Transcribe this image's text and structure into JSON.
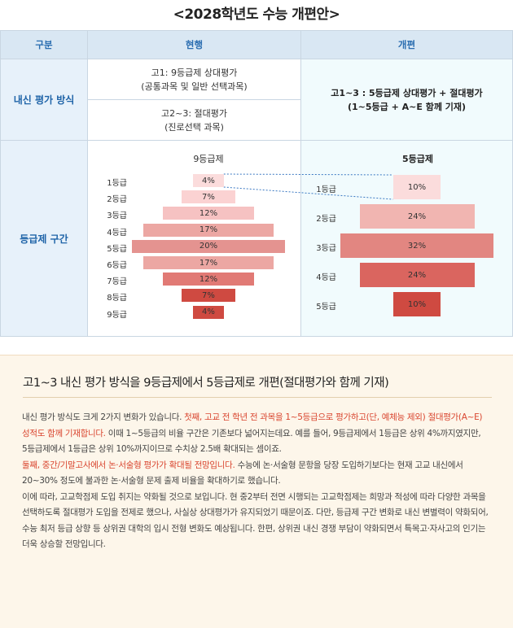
{
  "title": "<2028학년도 수능 개편안>",
  "table": {
    "header": {
      "category": "구분",
      "current": "현행",
      "reform": "개편"
    },
    "row1": {
      "label": "내신 평가 방식",
      "current_a_line1": "고1: 9등급제 상대평가",
      "current_a_line2": "(공통과목 및 일반 선택과목)",
      "current_b_line1": "고2~3: 절대평가",
      "current_b_line2": "(진로선택 과목)",
      "reform_line1": "고1~3 : 5등급제 상대평가 + 절대평가",
      "reform_line2": "(1~5등급 + A~E 함께 기재)"
    },
    "row2": {
      "label": "등급제 구간"
    }
  },
  "chart_data": [
    {
      "type": "bar",
      "title": "9등급제",
      "categories": [
        "1등급",
        "2등급",
        "3등급",
        "4등급",
        "5등급",
        "6등급",
        "7등급",
        "8등급",
        "9등급"
      ],
      "values": [
        4,
        7,
        12,
        17,
        20,
        17,
        12,
        7,
        4
      ],
      "labels": [
        "4%",
        "7%",
        "12%",
        "17%",
        "20%",
        "17%",
        "12%",
        "7%",
        "4%"
      ],
      "colors": [
        "#fbdcdc",
        "#fbd2d2",
        "#f6c2c2",
        "#eca7a3",
        "#e49390",
        "#eca7a3",
        "#e17a75",
        "#cf4a41",
        "#cf4a41"
      ]
    },
    {
      "type": "bar",
      "title": "5등급제",
      "categories": [
        "1등급",
        "2등급",
        "3등급",
        "4등급",
        "5등급"
      ],
      "values": [
        10,
        24,
        32,
        24,
        10
      ],
      "labels": [
        "10%",
        "24%",
        "32%",
        "24%",
        "10%"
      ],
      "colors": [
        "#fbdcdc",
        "#f1b5b1",
        "#e28681",
        "#da655f",
        "#cf4a41"
      ]
    }
  ],
  "summary": {
    "title": "고1~3 내신 평가 방식을 9등급제에서 5등급제로 개편(절대평가와 함께 기재)",
    "p1_a": "내신 평가 방식도 크게 2가지 변화가 있습니다. ",
    "p1_hl": "첫째, 고교 전 학년 전 과목을 1~5등급으로 평가하고(단, 예체능 제외) 절대평가(A~E) 성적도 함께 기재합니다.",
    "p1_b": " 이때 1~5등급의 비율 구간은 기존보다 넓어지는데요. 예를 들어, 9등급제에서 1등급은 상위 4%까지였지만, 5등급제에서 1등급은 상위 10%까지이므로 수치상 2.5배 확대되는 셈이죠.",
    "p2_hl": "둘째, 중간/기말고사에서 논·서술형 평가가 확대될 전망입니다.",
    "p2_b": " 수능에 논·서술형 문항을 당장 도입하기보다는 현재 고교 내신에서 20~30% 정도에 불과한 논·서술형 문제 출제 비율을 확대하기로 했습니다.",
    "p3": "이에 따라, 고교학점제 도입 취지는 약화될 것으로 보입니다. 현 중2부터 전면 시행되는 고교학점제는 희망과 적성에 따라 다양한 과목을 선택하도록 절대평가 도입을 전제로 했으나, 사실상 상대평가가 유지되었기 때문이죠. 다만, 등급제 구간 변화로 내신 변별력이 약화되어, 수능 최저 등급 상향 등 상위권 대학의 입시 전형 변화도 예상됩니다. 한편, 상위권 내신 경쟁 부담이 약화되면서 특목고·자사고의 인기는 더욱 상승할 전망입니다."
  }
}
